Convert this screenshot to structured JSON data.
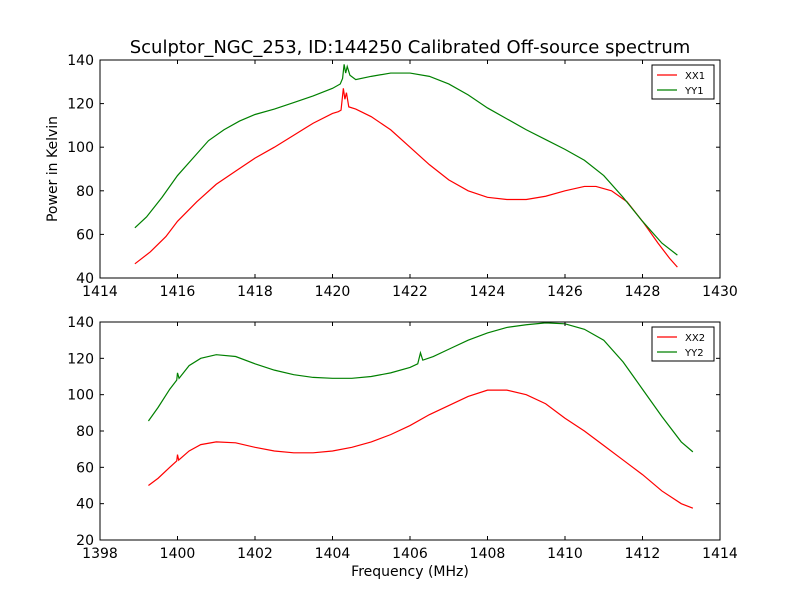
{
  "title": "Sculptor_NGC_253, ID:144250 Calibrated Off-source spectrum",
  "chart_data": [
    {
      "type": "line",
      "ylabel": "Power in Kelvin",
      "xlabel": "",
      "xlim": [
        1414,
        1430
      ],
      "ylim": [
        40,
        140
      ],
      "xticks": [
        1414,
        1416,
        1418,
        1420,
        1422,
        1424,
        1426,
        1428,
        1430
      ],
      "yticks": [
        40,
        60,
        80,
        100,
        120,
        140
      ],
      "grid": false,
      "legend_position": "top-right",
      "series": [
        {
          "name": "XX1",
          "color": "#ff0000",
          "points": [
            [
              1414.9,
              46.5
            ],
            [
              1415.3,
              52
            ],
            [
              1415.7,
              59
            ],
            [
              1416.0,
              66
            ],
            [
              1416.5,
              75
            ],
            [
              1417.0,
              83
            ],
            [
              1417.5,
              89
            ],
            [
              1418.0,
              95
            ],
            [
              1418.5,
              100
            ],
            [
              1419.0,
              105.5
            ],
            [
              1419.5,
              111
            ],
            [
              1420.0,
              115.5
            ],
            [
              1420.15,
              116.3
            ],
            [
              1420.22,
              117
            ],
            [
              1420.28,
              127
            ],
            [
              1420.32,
              122
            ],
            [
              1420.36,
              125
            ],
            [
              1420.42,
              118.5
            ],
            [
              1420.6,
              117.5
            ],
            [
              1421.0,
              114
            ],
            [
              1421.5,
              108
            ],
            [
              1422.0,
              100
            ],
            [
              1422.5,
              92
            ],
            [
              1423.0,
              85
            ],
            [
              1423.5,
              80
            ],
            [
              1424.0,
              77
            ],
            [
              1424.5,
              76
            ],
            [
              1425.0,
              76
            ],
            [
              1425.5,
              77.5
            ],
            [
              1426.0,
              80
            ],
            [
              1426.5,
              82
            ],
            [
              1426.8,
              82
            ],
            [
              1427.2,
              80
            ],
            [
              1427.6,
              75
            ],
            [
              1428.0,
              66
            ],
            [
              1428.4,
              56
            ],
            [
              1428.7,
              49
            ],
            [
              1428.9,
              45
            ]
          ]
        },
        {
          "name": "YY1",
          "color": "#008000",
          "points": [
            [
              1414.9,
              63
            ],
            [
              1415.2,
              68
            ],
            [
              1415.6,
              77
            ],
            [
              1416.0,
              87
            ],
            [
              1416.4,
              95
            ],
            [
              1416.8,
              103
            ],
            [
              1417.2,
              108
            ],
            [
              1417.6,
              112
            ],
            [
              1418.0,
              115
            ],
            [
              1418.5,
              117.5
            ],
            [
              1419.0,
              120.5
            ],
            [
              1419.5,
              123.5
            ],
            [
              1420.0,
              127
            ],
            [
              1420.2,
              129
            ],
            [
              1420.26,
              131.5
            ],
            [
              1420.3,
              138
            ],
            [
              1420.34,
              134
            ],
            [
              1420.38,
              137
            ],
            [
              1420.45,
              133
            ],
            [
              1420.6,
              131
            ],
            [
              1421.0,
              132.5
            ],
            [
              1421.5,
              134
            ],
            [
              1422.0,
              134
            ],
            [
              1422.5,
              132.5
            ],
            [
              1423.0,
              129
            ],
            [
              1423.5,
              124
            ],
            [
              1424.0,
              118
            ],
            [
              1424.5,
              113
            ],
            [
              1425.0,
              108
            ],
            [
              1425.5,
              103.5
            ],
            [
              1426.0,
              99
            ],
            [
              1426.5,
              94
            ],
            [
              1427.0,
              87
            ],
            [
              1427.5,
              77
            ],
            [
              1428.0,
              66
            ],
            [
              1428.5,
              56
            ],
            [
              1428.9,
              50.5
            ]
          ]
        }
      ]
    },
    {
      "type": "line",
      "ylabel": "",
      "xlabel": "Frequency (MHz)",
      "xlim": [
        1398,
        1414
      ],
      "ylim": [
        20,
        140
      ],
      "xticks": [
        1398,
        1400,
        1402,
        1404,
        1406,
        1408,
        1410,
        1412,
        1414
      ],
      "yticks": [
        20,
        40,
        60,
        80,
        100,
        120,
        140
      ],
      "grid": false,
      "legend_position": "top-right",
      "series": [
        {
          "name": "XX2",
          "color": "#ff0000",
          "points": [
            [
              1399.25,
              50
            ],
            [
              1399.5,
              54
            ],
            [
              1399.8,
              60
            ],
            [
              1399.98,
              63.5
            ],
            [
              1400.0,
              67
            ],
            [
              1400.03,
              64
            ],
            [
              1400.3,
              69
            ],
            [
              1400.6,
              72.5
            ],
            [
              1401.0,
              74
            ],
            [
              1401.5,
              73.5
            ],
            [
              1402.0,
              71
            ],
            [
              1402.5,
              69
            ],
            [
              1403.0,
              68
            ],
            [
              1403.5,
              68
            ],
            [
              1404.0,
              69
            ],
            [
              1404.5,
              71
            ],
            [
              1405.0,
              74
            ],
            [
              1405.5,
              78
            ],
            [
              1406.0,
              83
            ],
            [
              1406.5,
              89
            ],
            [
              1407.0,
              94
            ],
            [
              1407.5,
              99
            ],
            [
              1408.0,
              102.5
            ],
            [
              1408.5,
              102.5
            ],
            [
              1409.0,
              100
            ],
            [
              1409.5,
              95
            ],
            [
              1410.0,
              87
            ],
            [
              1410.5,
              80
            ],
            [
              1411.0,
              72
            ],
            [
              1411.5,
              64
            ],
            [
              1412.0,
              56
            ],
            [
              1412.5,
              47
            ],
            [
              1413.0,
              40
            ],
            [
              1413.3,
              37.5
            ]
          ]
        },
        {
          "name": "YY2",
          "color": "#008000",
          "points": [
            [
              1399.25,
              85.5
            ],
            [
              1399.5,
              93
            ],
            [
              1399.8,
              103
            ],
            [
              1399.98,
              108
            ],
            [
              1400.0,
              112
            ],
            [
              1400.04,
              109
            ],
            [
              1400.3,
              116
            ],
            [
              1400.6,
              120
            ],
            [
              1401.0,
              122
            ],
            [
              1401.5,
              121
            ],
            [
              1402.0,
              117
            ],
            [
              1402.5,
              113.5
            ],
            [
              1403.0,
              111
            ],
            [
              1403.5,
              109.5
            ],
            [
              1404.0,
              109
            ],
            [
              1404.5,
              109
            ],
            [
              1405.0,
              110
            ],
            [
              1405.5,
              112
            ],
            [
              1406.0,
              115
            ],
            [
              1406.2,
              117
            ],
            [
              1406.27,
              123
            ],
            [
              1406.33,
              119
            ],
            [
              1406.6,
              121
            ],
            [
              1407.0,
              125
            ],
            [
              1407.5,
              130
            ],
            [
              1408.0,
              134
            ],
            [
              1408.5,
              137
            ],
            [
              1409.0,
              138.5
            ],
            [
              1409.5,
              139.5
            ],
            [
              1410.0,
              139
            ],
            [
              1410.5,
              136
            ],
            [
              1411.0,
              130
            ],
            [
              1411.5,
              118
            ],
            [
              1412.0,
              103
            ],
            [
              1412.5,
              88
            ],
            [
              1413.0,
              74
            ],
            [
              1413.3,
              68.5
            ]
          ]
        }
      ]
    }
  ]
}
